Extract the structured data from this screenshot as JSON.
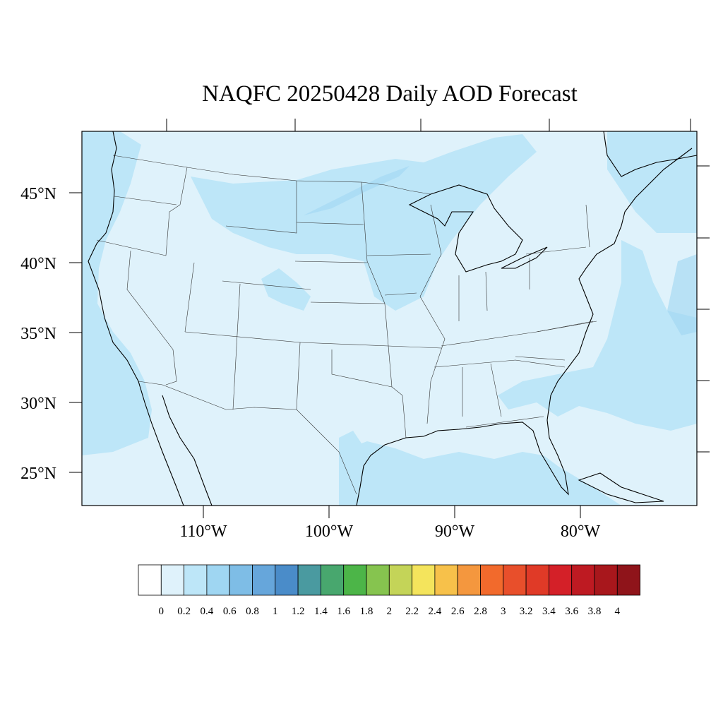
{
  "title": "NAQFC 20250428 Daily AOD Forecast",
  "lat_labels": [
    "45°N",
    "40°N",
    "35°N",
    "30°N",
    "25°N"
  ],
  "lon_labels": [
    "110°W",
    "100°W",
    "90°W",
    "80°W"
  ],
  "colorbar": {
    "labels": [
      "0",
      "0.2",
      "0.4",
      "0.6",
      "0.8",
      "1",
      "1.2",
      "1.4",
      "1.6",
      "1.8",
      "2",
      "2.2",
      "2.4",
      "2.6",
      "2.8",
      "3",
      "3.2",
      "3.4",
      "3.6",
      "3.8",
      "4"
    ],
    "colors": [
      "#ffffff",
      "#dff2fb",
      "#bde6f8",
      "#9fd6f2",
      "#7ebde6",
      "#66a6db",
      "#4a8cc9",
      "#4a9aa0",
      "#48a76e",
      "#4cb548",
      "#86c44f",
      "#c4d458",
      "#f4e45c",
      "#f7c14a",
      "#f4973e",
      "#f26a2c",
      "#e84f2b",
      "#e03a27",
      "#d42028",
      "#be1a22",
      "#a8171c",
      "#8f141a"
    ]
  },
  "colors": {
    "background_aod": "#dff2fb",
    "aod_0_4": "#bde6f8",
    "aod_0_6": "#9fd6f2"
  }
}
